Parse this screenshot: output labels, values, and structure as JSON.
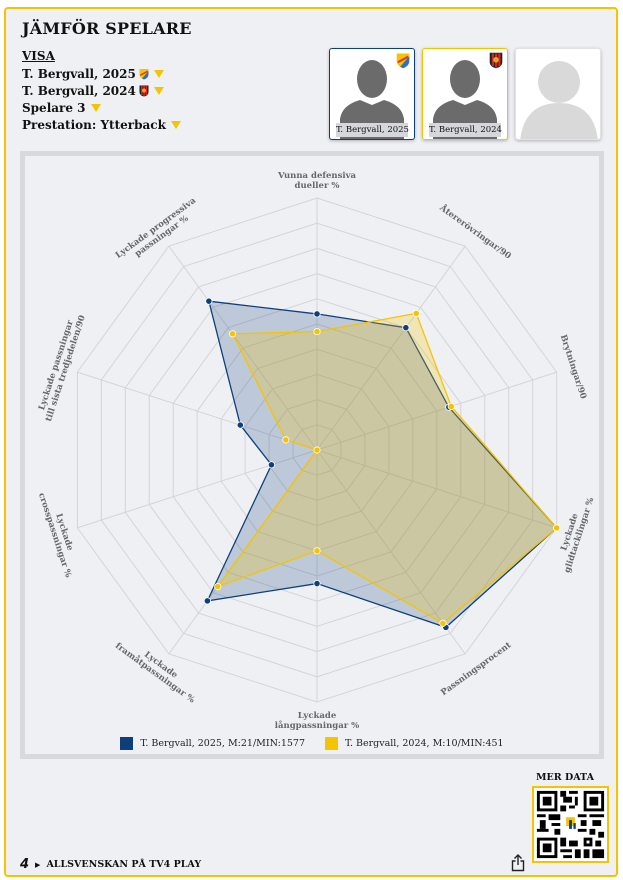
{
  "header": {
    "title": "JÄMFÖR SPELARE",
    "visa_label": "VISA"
  },
  "selectors": [
    {
      "label": "T. Bergvall, 2025",
      "crest": "djurgarden-crest-icon",
      "dropdown_icon": "caret-down-icon"
    },
    {
      "label": "T. Bergvall, 2024",
      "crest": "brommapojkarna-crest-icon",
      "dropdown_icon": "caret-down-icon"
    },
    {
      "label": "Spelare 3",
      "dropdown_icon": "caret-down-icon"
    },
    {
      "label": "Prestation: Ytterback",
      "dropdown_icon": "caret-down-icon"
    }
  ],
  "player_cards": [
    {
      "name": "T. Bergvall, 2025",
      "color": "#0e3f7a",
      "crest": "djurgarden-crest-icon"
    },
    {
      "name": "T. Bergvall, 2024",
      "color": "#f5c400",
      "crest": "brommapojkarna-crest-icon"
    },
    {
      "name": "",
      "color": "#e2e2e2",
      "placeholder": true
    }
  ],
  "chart_data": {
    "type": "radar",
    "axes": [
      "Vunna defensiva\ndueller %",
      "Återerövringar/90",
      "Brytningar/90",
      "Lyckade\nglidtacklingar %",
      "Passningsprocent",
      "Lyckade\nlångpassningar %",
      "Lyckade\nframåtpassningar %",
      "Lyckade\ncrosspassningar %",
      "Lyckade passningar\ntill sista tredjedelen/90",
      "Lyckade progressiva\npassningar %"
    ],
    "range": [
      0,
      100
    ],
    "rings": 10,
    "grid": true,
    "legend_position": "bottom",
    "series": [
      {
        "name": "T. Bergvall, 2025, M:21/MIN:1577",
        "color": "#0e3f7a",
        "values": [
          54,
          60,
          55,
          100,
          87,
          53,
          74,
          19,
          32,
          73
        ]
      },
      {
        "name": "T. Bergvall, 2024, M:10/MIN:451",
        "color": "#f5c400",
        "values": [
          47,
          67,
          56,
          100,
          85,
          40,
          67,
          0,
          13,
          57
        ]
      }
    ]
  },
  "footer": {
    "brand": "4",
    "link_label": "ALLSVENSKAN PÅ TV4 PLAY",
    "share_icon": "share-icon",
    "mer_data_label": "MER DATA",
    "qr_icon": "qr-code-icon"
  }
}
